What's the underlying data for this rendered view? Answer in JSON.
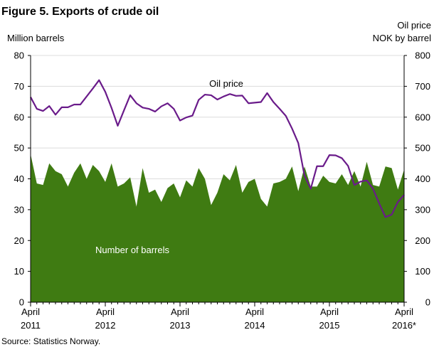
{
  "chart_data": {
    "type": "area+line",
    "title": "Figure 5. Exports of crude oil",
    "source": "Source: Statistics Norway.",
    "ylabel_left": "Million barrels",
    "ylabel_right_line1": "Oil price",
    "ylabel_right_line2": "NOK by barrel",
    "ylim_left": [
      0,
      80
    ],
    "ylim_right": [
      0,
      800
    ],
    "yticks_left": [
      "0",
      "10",
      "20",
      "30",
      "40",
      "50",
      "60",
      "70",
      "80"
    ],
    "yticks_right": [
      "0",
      "100",
      "200",
      "300",
      "400",
      "500",
      "600",
      "700",
      "800"
    ],
    "x_tick_labels": [
      {
        "month": "April",
        "year": "2011",
        "index": 0
      },
      {
        "month": "April",
        "year": "2012",
        "index": 12
      },
      {
        "month": "April",
        "year": "2013",
        "index": 24
      },
      {
        "month": "April",
        "year": "2014",
        "index": 36
      },
      {
        "month": "April",
        "year": "2015",
        "index": 48
      },
      {
        "month": "April",
        "year": "2016*",
        "index": 60
      }
    ],
    "grid": "horizontal",
    "colors": {
      "barrels_fill": "#3f7b12",
      "oil_price_line": "#6a1b8a",
      "grid": "#dcdcdc"
    },
    "series": [
      {
        "name": "Number of barrels",
        "kind": "area",
        "axis": "left",
        "values": [
          48,
          38.5,
          38,
          45,
          42.5,
          41.5,
          37.5,
          42,
          45,
          40,
          44.5,
          42.5,
          39,
          45,
          37.5,
          38.5,
          40.5,
          31,
          43.5,
          35.5,
          36.5,
          32.5,
          37,
          38.5,
          34,
          39.5,
          37.5,
          43.5,
          40,
          31.5,
          35.5,
          41.5,
          39.5,
          44.5,
          35.5,
          39,
          40,
          33.5,
          31,
          38.5,
          39,
          40,
          44,
          36,
          44,
          37.5,
          37.5,
          41,
          39,
          38.5,
          41.5,
          38,
          42.5,
          37.5,
          45.5,
          38,
          37.5,
          44,
          43.5,
          36.5,
          43
        ]
      },
      {
        "name": "Oil price",
        "kind": "line",
        "axis": "right",
        "values": [
          665,
          627,
          620,
          636,
          608,
          632,
          632,
          641,
          641,
          667,
          693,
          720,
          682,
          630,
          572,
          622,
          671,
          645,
          631,
          627,
          618,
          635,
          645,
          627,
          589,
          599,
          605,
          656,
          673,
          671,
          657,
          667,
          675,
          669,
          670,
          645,
          647,
          649,
          678,
          649,
          627,
          604,
          563,
          516,
          410,
          368,
          441,
          441,
          477,
          476,
          467,
          442,
          380,
          391,
          395,
          368,
          320,
          276,
          284,
          325,
          348
        ]
      }
    ],
    "annotations": [
      "Oil price",
      "Number of barrels"
    ]
  }
}
